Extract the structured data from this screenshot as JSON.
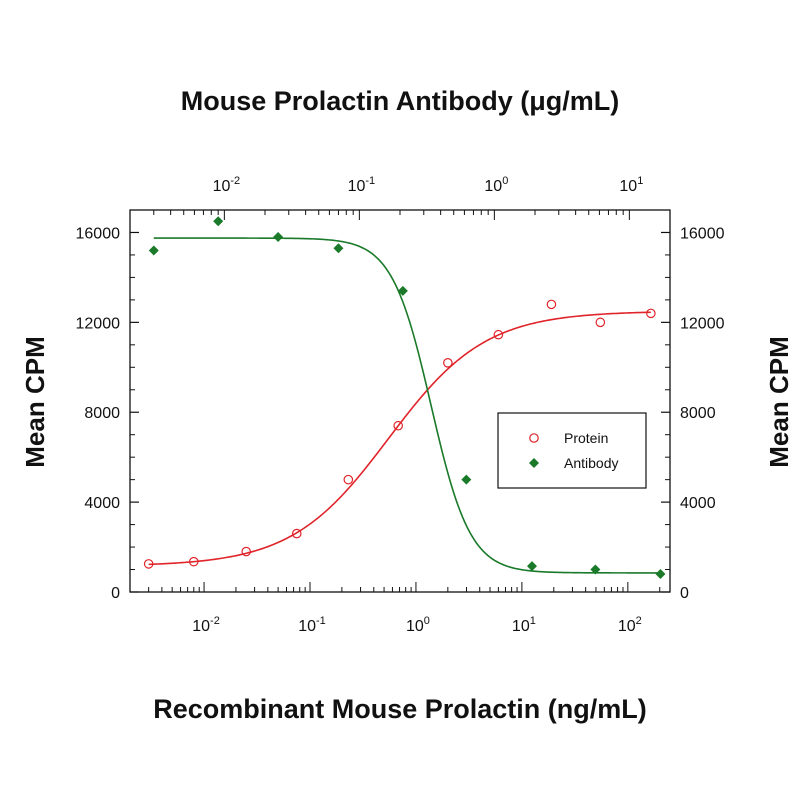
{
  "chart_data": {
    "type": "scatter",
    "title_top": "Mouse Prolactin Antibody (μg/mL)",
    "xlabel": "Recombinant Mouse Prolactin (ng/mL)",
    "ylabel_left": "Mean CPM",
    "ylabel_right": "Mean CPM",
    "x_scale": "log",
    "xlim": [
      0.002,
      250
    ],
    "x_top_lim": [
      0.002,
      20
    ],
    "ylim": [
      0,
      17000
    ],
    "y_ticks": [
      0,
      4000,
      8000,
      12000,
      16000
    ],
    "x_bottom_ticks": [
      {
        "value": 0.01,
        "base": "10",
        "exp": "-2"
      },
      {
        "value": 0.1,
        "base": "10",
        "exp": "-1"
      },
      {
        "value": 1,
        "base": "10",
        "exp": "0"
      },
      {
        "value": 10,
        "base": "10",
        "exp": "1"
      },
      {
        "value": 100,
        "base": "10",
        "exp": "2"
      }
    ],
    "x_top_ticks": [
      {
        "value": 0.01,
        "base": "10",
        "exp": "-2"
      },
      {
        "value": 0.1,
        "base": "10",
        "exp": "-1"
      },
      {
        "value": 1,
        "base": "10",
        "exp": "0"
      },
      {
        "value": 10,
        "base": "10",
        "exp": "1"
      }
    ],
    "legend": [
      {
        "name": "Protein",
        "marker": "open-circle",
        "color": "#e0242a"
      },
      {
        "name": "Antibody",
        "marker": "filled-diamond",
        "color": "#1a7a2a"
      }
    ],
    "legend_position": "right-middle",
    "series": [
      {
        "name": "Protein",
        "axis": "bottom",
        "color": "#e0242a",
        "points": [
          {
            "x": 0.003,
            "y": 1250
          },
          {
            "x": 0.008,
            "y": 1350
          },
          {
            "x": 0.025,
            "y": 1800
          },
          {
            "x": 0.075,
            "y": 2600
          },
          {
            "x": 0.23,
            "y": 5000
          },
          {
            "x": 0.68,
            "y": 7400
          },
          {
            "x": 2.0,
            "y": 10200
          },
          {
            "x": 6.0,
            "y": 11450
          },
          {
            "x": 19,
            "y": 12800
          },
          {
            "x": 55,
            "y": 12000
          },
          {
            "x": 165,
            "y": 12400
          }
        ],
        "fit": {
          "bottom": 1150,
          "top": 12500,
          "ec50": 0.55,
          "hill": 0.95
        }
      },
      {
        "name": "Antibody",
        "axis": "top",
        "color": "#1a7a2a",
        "points": [
          {
            "x": 0.003,
            "y": 15200
          },
          {
            "x": 0.009,
            "y": 16500
          },
          {
            "x": 0.025,
            "y": 15800
          },
          {
            "x": 0.07,
            "y": 15300
          },
          {
            "x": 0.21,
            "y": 13400
          },
          {
            "x": 0.62,
            "y": 5000
          },
          {
            "x": 1.9,
            "y": 1150
          },
          {
            "x": 5.6,
            "y": 1000
          },
          {
            "x": 17,
            "y": 800
          }
        ],
        "fit": {
          "bottom": 850,
          "top": 15750,
          "ec50": 0.34,
          "hill": 3.0
        }
      }
    ]
  }
}
